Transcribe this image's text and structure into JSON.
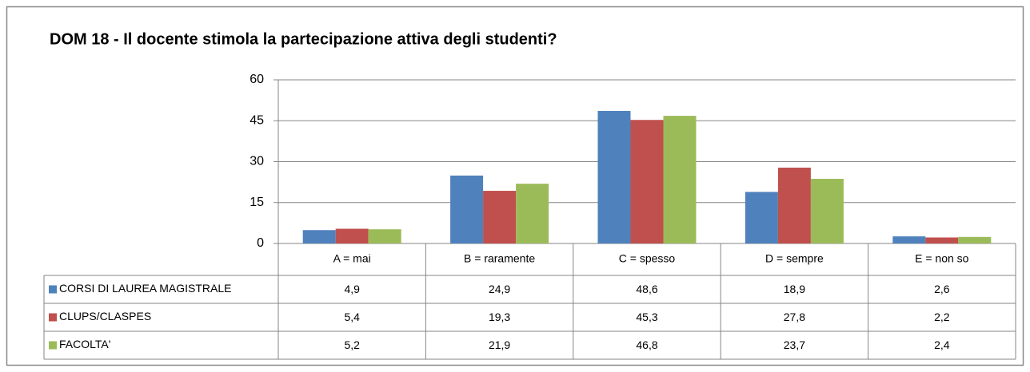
{
  "chart_data": {
    "type": "bar",
    "title": "DOM  18 - Il docente stimola la partecipazione attiva degli studenti?",
    "categories": [
      "A = mai",
      "B = raramente",
      "C = spesso",
      "D = sempre",
      "E = non so"
    ],
    "series": [
      {
        "name": "CORSI DI LAUREA MAGISTRALE",
        "color": "#4f81bd",
        "values": [
          4.9,
          24.9,
          48.6,
          18.9,
          2.6
        ],
        "value_labels": [
          "4,9",
          "24,9",
          "48,6",
          "18,9",
          "2,6"
        ]
      },
      {
        "name": "CLUPS/CLASPES",
        "color": "#c0504d",
        "values": [
          5.4,
          19.3,
          45.3,
          27.8,
          2.2
        ],
        "value_labels": [
          "5,4",
          "19,3",
          "45,3",
          "27,8",
          "2,2"
        ]
      },
      {
        "name": "FACOLTA'",
        "color": "#9bbb59",
        "values": [
          5.2,
          21.9,
          46.8,
          23.7,
          2.4
        ],
        "value_labels": [
          "5,2",
          "21,9",
          "46,8",
          "23,7",
          "2,4"
        ]
      }
    ],
    "ylim": [
      0,
      60
    ],
    "yticks": [
      0,
      15,
      30,
      45,
      60
    ],
    "grid": true
  }
}
